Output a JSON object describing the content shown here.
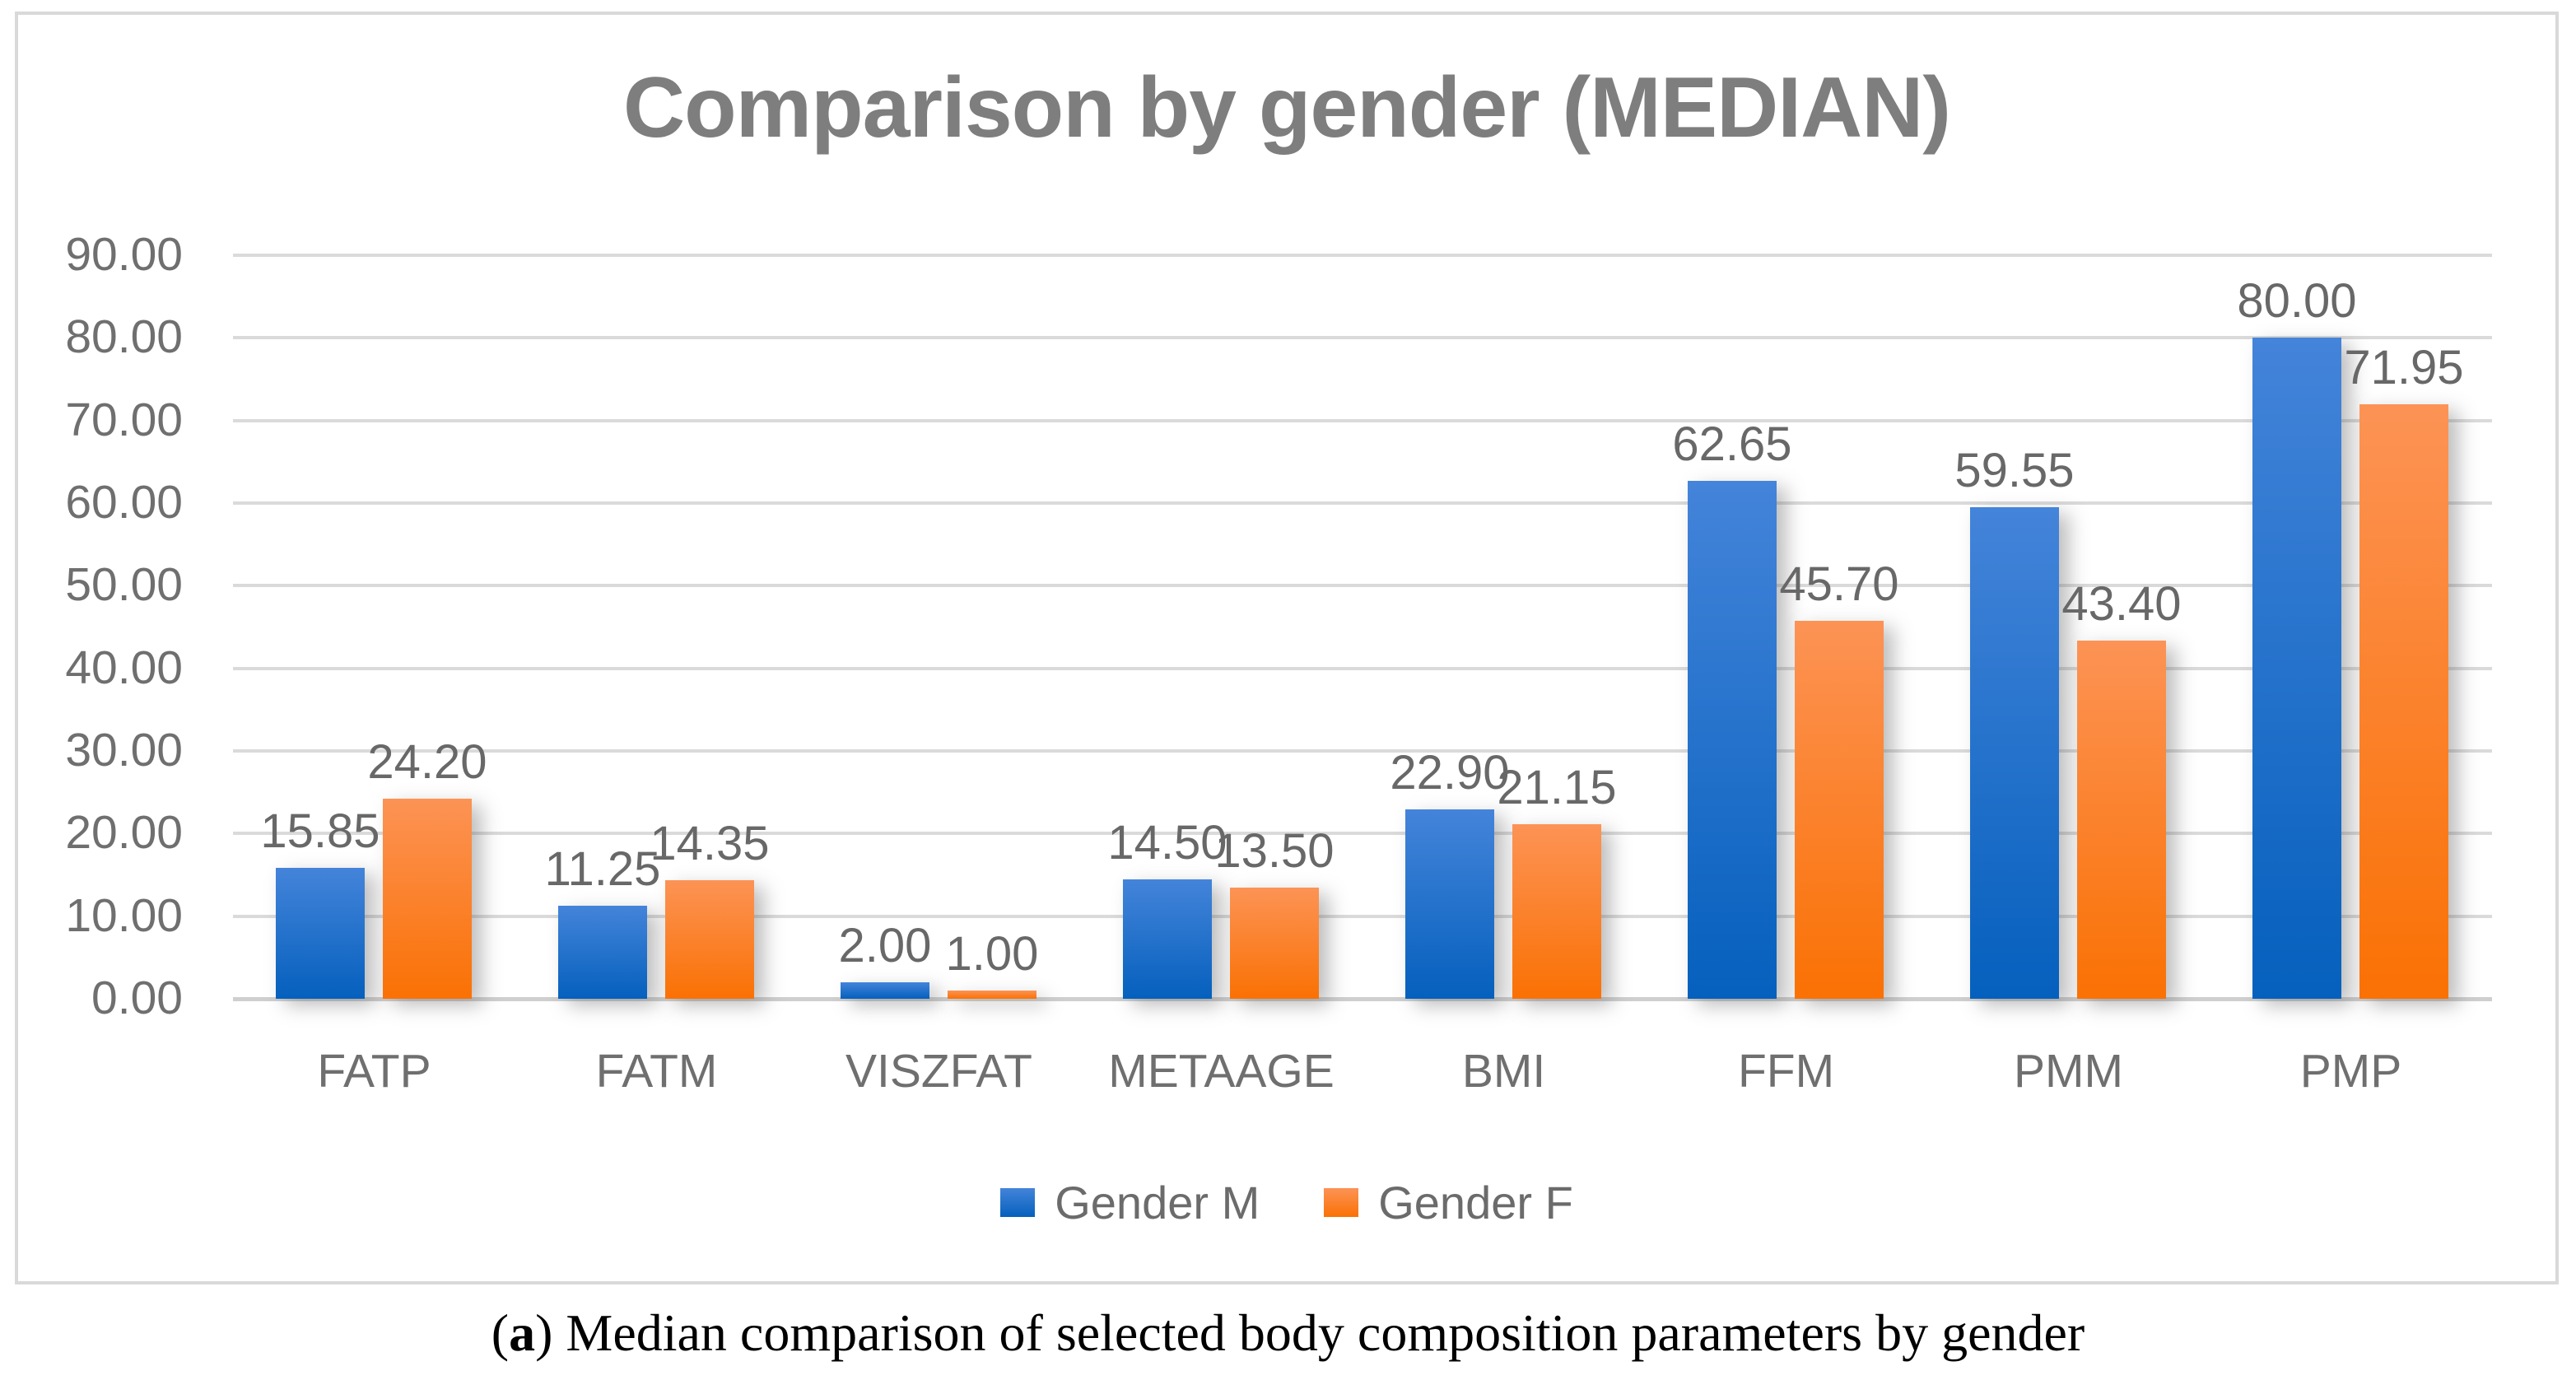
{
  "chart_data": {
    "type": "bar",
    "title": "Comparison by gender (MEDIAN)",
    "categories": [
      "FATP",
      "FATM",
      "VISZFAT",
      "METAAGE",
      "BMI",
      "FFM",
      "PMM",
      "PMP"
    ],
    "series": [
      {
        "name": "Gender M",
        "values": [
          15.85,
          11.25,
          2.0,
          14.5,
          22.9,
          62.65,
          59.55,
          80.0
        ],
        "labels": [
          "15.85",
          "11.25",
          "2.00",
          "14.50",
          "22.90",
          "62.65",
          "59.55",
          "80.00"
        ],
        "color_top": "#4484DA",
        "color_bottom": "#0560BD"
      },
      {
        "name": "Gender F",
        "values": [
          24.2,
          14.35,
          1.0,
          13.5,
          21.15,
          45.7,
          43.4,
          71.95
        ],
        "labels": [
          "24.20",
          "14.35",
          "1.00",
          "13.50",
          "21.15",
          "45.70",
          "43.40",
          "71.95"
        ],
        "color_top": "#FC9355",
        "color_bottom": "#FA7104"
      }
    ],
    "ylim": [
      0,
      90
    ],
    "ytick_step": 10,
    "ytick_labels": [
      "0.00",
      "10.00",
      "20.00",
      "30.00",
      "40.00",
      "50.00",
      "60.00",
      "70.00",
      "80.00",
      "90.00"
    ],
    "grid": true,
    "legend_position": "bottom"
  },
  "caption": {
    "paren_open": "(",
    "marker": "a",
    "rest": ") Median comparison of selected body composition parameters by gender"
  },
  "colors": {
    "title_text": "#7E7E7E",
    "axis_text": "#6F6F6F",
    "data_label_text": "#686868",
    "gridline": "#DADADA",
    "axis_line": "#CFCFCF",
    "frame_border": "#D9D9D9",
    "caption_text": "#000000",
    "background": "#FFFFFF"
  }
}
